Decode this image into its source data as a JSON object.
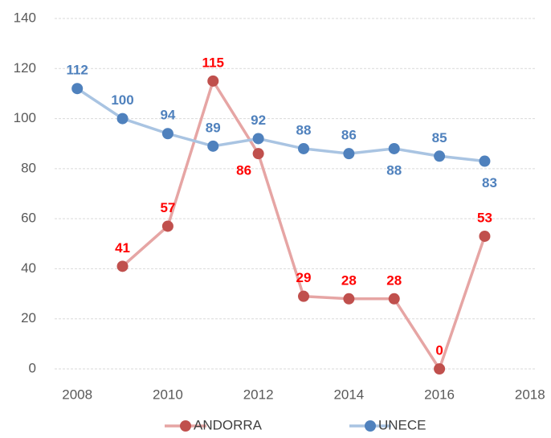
{
  "chart_data": {
    "type": "line",
    "x": [
      2008,
      2009,
      2010,
      2011,
      2012,
      2013,
      2014,
      2015,
      2016,
      2017
    ],
    "series": [
      {
        "name": "ANDORRA",
        "color": "#c0504d",
        "line_color": "#e6a5a4",
        "label_color": "#ff0000",
        "values": [
          null,
          41,
          57,
          115,
          86,
          29,
          28,
          28,
          0,
          53
        ]
      },
      {
        "name": "UNECE",
        "color": "#4f81bd",
        "line_color": "#a9c4e2",
        "label_color": "#4f81bd",
        "values": [
          112,
          100,
          94,
          89,
          92,
          88,
          86,
          88,
          85,
          83
        ]
      }
    ],
    "xlim": [
      2007.5,
      2018.5
    ],
    "xticks": [
      2008,
      2010,
      2012,
      2014,
      2016,
      2018
    ],
    "ylim": [
      0,
      140
    ],
    "yticks": [
      0,
      20,
      40,
      60,
      80,
      100,
      120,
      140
    ],
    "grid": true,
    "legend": "bottom"
  }
}
